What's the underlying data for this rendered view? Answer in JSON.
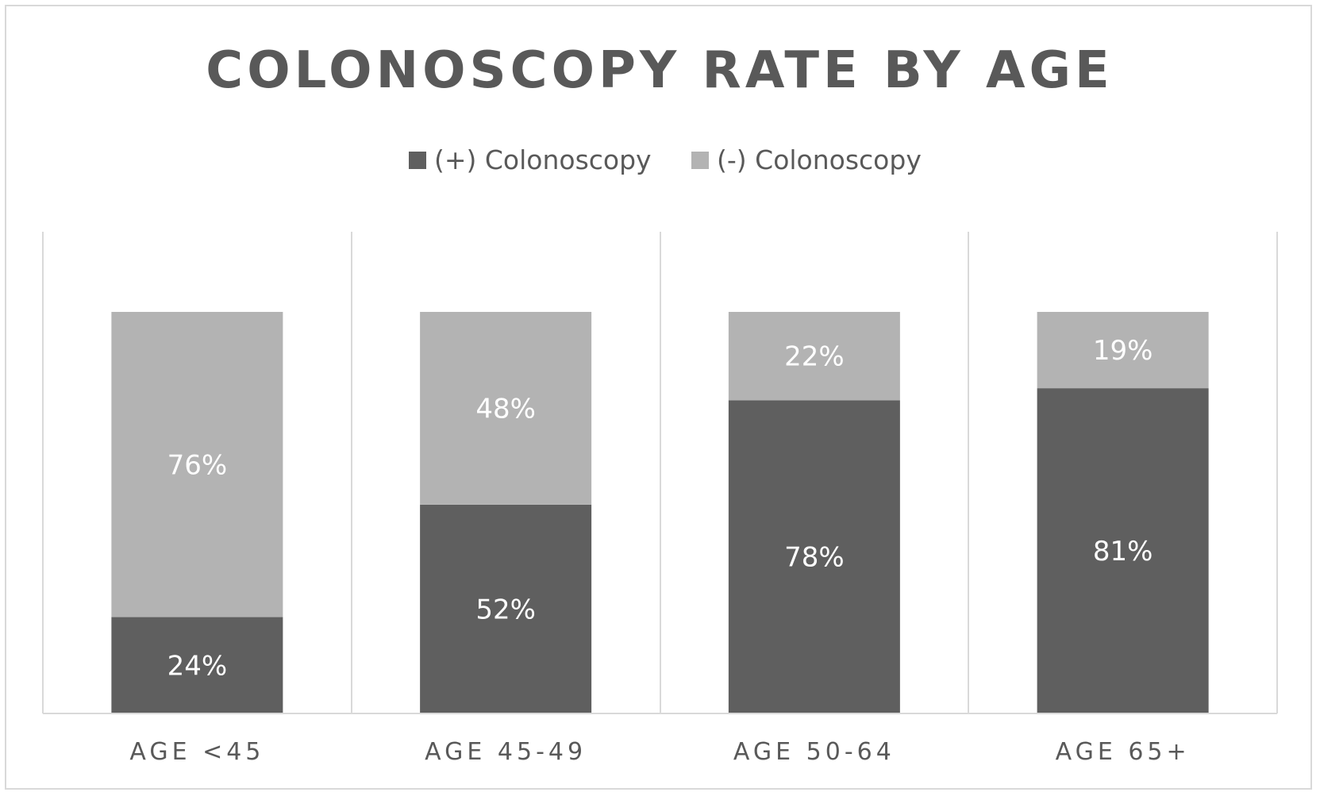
{
  "chart_data": {
    "type": "bar",
    "stacked": true,
    "title": "COLONOSCOPY RATE BY AGE",
    "xlabel": "",
    "ylabel": "",
    "categories": [
      "AGE <45",
      "AGE 45-49",
      "AGE 50-64",
      "AGE 65+"
    ],
    "series": [
      {
        "name": "(+) Colonoscopy",
        "color": "#5f5f5f",
        "values": [
          24,
          52,
          78,
          81
        ],
        "labels": [
          "24%",
          "52%",
          "78%",
          "81%"
        ]
      },
      {
        "name": "(-) Colonoscopy",
        "color": "#b3b3b3",
        "values": [
          76,
          48,
          22,
          19
        ],
        "labels": [
          "76%",
          "48%",
          "22%",
          "19%"
        ]
      }
    ],
    "ylim": [
      0,
      100
    ],
    "grid": false,
    "legend_position": "top-center"
  }
}
